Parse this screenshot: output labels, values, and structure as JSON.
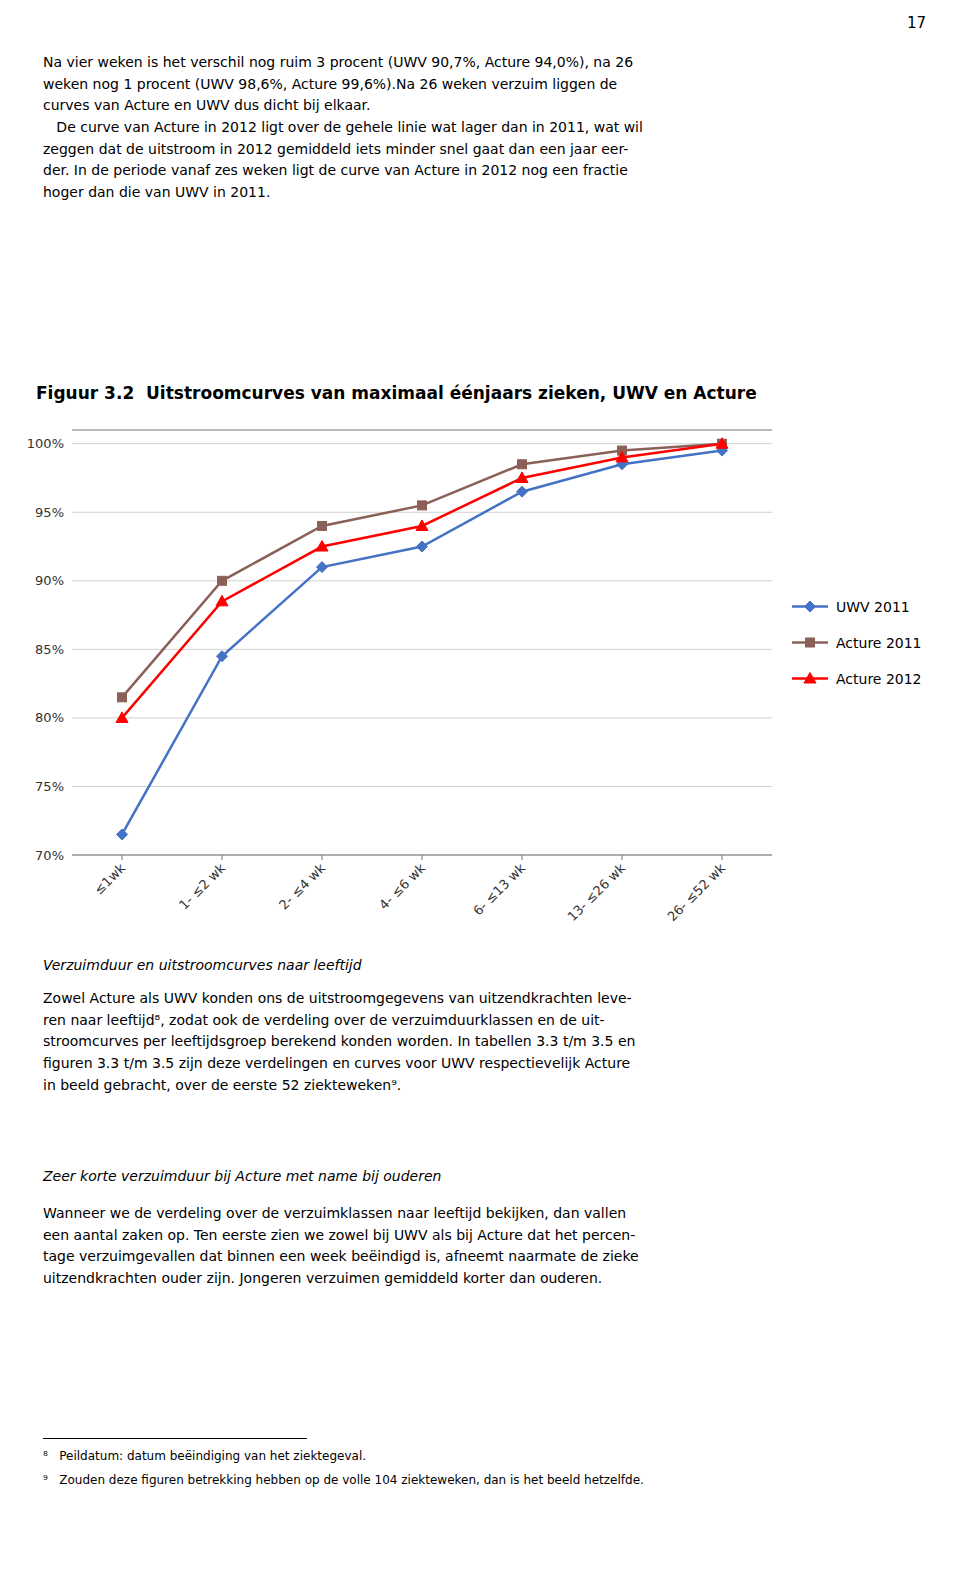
{
  "page_number": "17",
  "para1": "Na vier weken is het verschil nog ruim 3 procent (UWV 90,7%, Acture 94,0%), na 26\nweken nog 1 procent (UWV 98,6%, Acture 99,6%).Na 26 weken verzuim liggen de\ncurves van Acture en UWV dus dicht bij elkaar.\n   De curve van Acture in 2012 ligt over de gehele linie wat lager dan in 2011, wat wil\nzeggen dat de uitstroom in 2012 gemiddeld iets minder snel gaat dan een jaar eer-\nder. In de periode vanaf zes weken ligt de curve van Acture in 2012 nog een fractie\nhoger dan die van UWV in 2011.",
  "section_title1": "Verzuimduur en uitstroomcurves naar leeftijd",
  "para2": "Zowel Acture als UWV konden ons de uitstroomgegevens van uitzendkrachten leve-\nren naar leeftijd⁸, zodat ook de verdeling over de verzuimduurklassen en de uit-\nstroomcurves per leeftijdsgroep berekend konden worden. In tabellen 3.3 t/m 3.5 en\nfiguren 3.3 t/m 3.5 zijn deze verdelingen en curves voor UWV respectievelijk Acture\nin beeld gebracht, over de eerste 52 ziekteweken⁹.",
  "section_title2": "Zeer korte verzuimduur bij Acture met name bij ouderen",
  "para3": "Wanneer we de verdeling over de verzuimklassen naar leeftijd bekijken, dan vallen\neen aantal zaken op. Ten eerste zien we zowel bij UWV als bij Acture dat het percen-\ntage verzuimgevallen dat binnen een week beëindigd is, afneemt naarmate de zieke\nuitzendkrachten ouder zijn. Jongeren verzuimen gemiddeld korter dan ouderen.",
  "footnotes": [
    "⁸   Peildatum: datum beëindiging van het ziektegeval.",
    "⁹   Zouden deze figuren betrekking hebben op de volle 104 ziekteweken, dan is het beeld hetzelfde."
  ],
  "chart_data": {
    "type": "line",
    "title": "Figuur 3.2  Uitstroomcurves van maximaal éénjaars zieken, UWV en Acture",
    "categories": [
      "≤1wk",
      "1- ≤2 wk",
      "2- ≤4 wk",
      "4- ≤6 wk",
      "6- ≤13 wk",
      "13- ≤26 wk",
      "26- ≤52 wk"
    ],
    "series": [
      {
        "name": "UWV 2011",
        "color": "#4472C4",
        "marker": "diamond",
        "values": [
          71.5,
          84.5,
          91.0,
          92.5,
          96.5,
          98.5,
          99.5
        ]
      },
      {
        "name": "Acture 2011",
        "color": "#8B6058",
        "marker": "square",
        "values": [
          81.5,
          90.0,
          94.0,
          95.5,
          98.5,
          99.5,
          100.0
        ]
      },
      {
        "name": "Acture 2012",
        "color": "#FF0000",
        "marker": "triangle",
        "values": [
          80.0,
          88.5,
          92.5,
          94.0,
          97.5,
          99.0,
          100.0
        ]
      }
    ],
    "ylim": [
      70,
      101
    ],
    "yticks": [
      {
        "value": 70,
        "label": "70%"
      },
      {
        "value": 75,
        "label": "75%"
      },
      {
        "value": 80,
        "label": "80%"
      },
      {
        "value": 85,
        "label": "85%"
      },
      {
        "value": 90,
        "label": "90%"
      },
      {
        "value": 95,
        "label": "95%"
      },
      {
        "value": 100,
        "label": "100%"
      }
    ],
    "grid": true,
    "legend": "right"
  }
}
